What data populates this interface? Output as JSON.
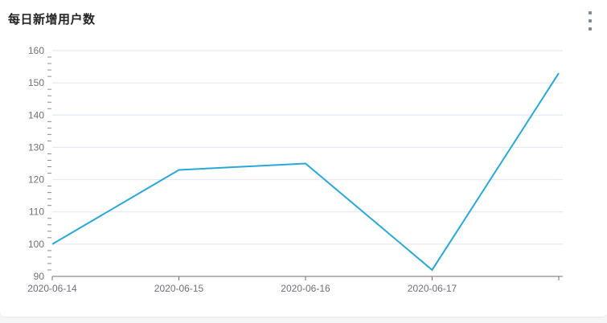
{
  "card": {
    "title": "每日新增用户数",
    "menu_icon": "kebab-vertical-icon"
  },
  "chart_data": {
    "type": "line",
    "title": "每日新增用户数",
    "categories": [
      "2020-06-14",
      "2020-06-15",
      "2020-06-16",
      "2020-06-17",
      ""
    ],
    "values": [
      100,
      123,
      125,
      92,
      153
    ],
    "xlabel": "",
    "ylabel": "",
    "ylim": [
      90,
      160
    ],
    "y_ticks": [
      90,
      100,
      110,
      120,
      130,
      140,
      150,
      160
    ],
    "minor_tick_step": 2,
    "grid": true,
    "legend": false,
    "show_symbols": false,
    "line_color": "#29a8d6",
    "grid_color": "#e0e6f1",
    "axis_color": "#6e7079",
    "minor_tick_color": "#8b9097",
    "label_color": "#6e7079"
  },
  "colors": {
    "page_bg": "#f5f6f7",
    "card_bg": "#ffffff",
    "title_color": "#252525",
    "kebab_color": "#7d8a93"
  }
}
